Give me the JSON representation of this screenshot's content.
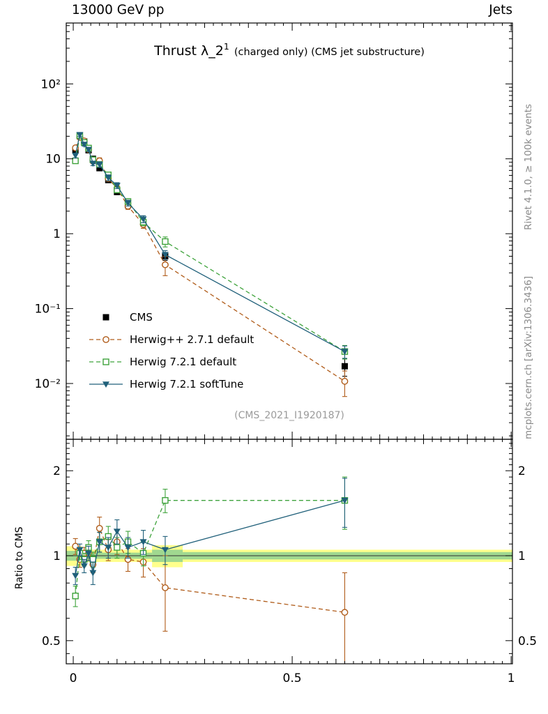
{
  "header": {
    "left": "13000 GeV pp",
    "right": "Jets"
  },
  "title": {
    "main": "Thrust λ_2",
    "sup": "1",
    "rest": "(charged only) (CMS jet substructure)"
  },
  "watermark": "(CMS_2021_I1920187)",
  "side_texts": {
    "top": "Rivet 4.1.0, ≥ 100k events",
    "bottom": "mcplots.cern.ch [arXiv:1306.3436]"
  },
  "ratio_axis_title": "Ratio to CMS",
  "chart_data": {
    "type": "line",
    "title": "Thrust λ_2¹ (charged only) (CMS jet substructure)",
    "xlabel": "",
    "ylabel": "",
    "x": [
      0.005,
      0.015,
      0.025,
      0.035,
      0.045,
      0.06,
      0.08,
      0.1,
      0.125,
      0.16,
      0.21,
      0.62
    ],
    "series": [
      {
        "name": "CMS",
        "color": "#000000",
        "marker": "square-filled",
        "line": "none",
        "values": [
          13,
          20,
          17,
          13,
          10,
          7.5,
          5.2,
          3.6,
          2.4,
          1.4,
          0.5,
          0.017
        ],
        "errors": [
          1.2,
          1.4,
          1.2,
          0.9,
          0.7,
          0.55,
          0.38,
          0.27,
          0.18,
          0.12,
          0.06,
          0.0045
        ]
      },
      {
        "name": "Herwig++ 2.7.1 default",
        "color": "#b05c1a",
        "marker": "circle-open",
        "line": "dashed",
        "values": [
          14.0,
          19.4,
          17.3,
          13.3,
          9.3,
          9.4,
          5.46,
          4.03,
          2.33,
          1.33,
          0.385,
          0.0107
        ],
        "errors": [
          0.9,
          1.1,
          0.9,
          0.8,
          0.6,
          0.9,
          0.45,
          0.38,
          0.22,
          0.15,
          0.11,
          0.004
        ],
        "ratio": [
          1.08,
          0.97,
          1.02,
          1.02,
          0.93,
          1.25,
          1.05,
          1.12,
          0.97,
          0.95,
          0.77,
          0.63
        ],
        "ratio_errors": [
          0.07,
          0.06,
          0.05,
          0.06,
          0.06,
          0.12,
          0.09,
          0.11,
          0.09,
          0.11,
          0.23,
          0.24
        ]
      },
      {
        "name": "Herwig 7.2.1 default",
        "color": "#3fa33c",
        "marker": "square-open",
        "line": "dashed",
        "values": [
          9.4,
          20.4,
          16.5,
          13.9,
          9.7,
          8.4,
          6.1,
          3.85,
          2.69,
          1.43,
          0.785,
          0.0267
        ],
        "errors": [
          0.7,
          1.1,
          0.9,
          0.8,
          0.6,
          0.7,
          0.5,
          0.34,
          0.24,
          0.15,
          0.12,
          0.0055
        ],
        "ratio": [
          0.72,
          1.02,
          0.97,
          1.07,
          0.97,
          1.12,
          1.17,
          1.07,
          1.12,
          1.02,
          1.57,
          1.57
        ],
        "ratio_errors": [
          0.06,
          0.05,
          0.05,
          0.06,
          0.06,
          0.09,
          0.1,
          0.09,
          0.1,
          0.1,
          0.15,
          0.33
        ]
      },
      {
        "name": "Herwig 7.2.1 softTune",
        "color": "#20607a",
        "marker": "triangle-down-filled",
        "line": "solid",
        "values": [
          11.1,
          21.0,
          15.6,
          13.3,
          8.7,
          8.4,
          5.6,
          4.4,
          2.57,
          1.57,
          0.525,
          0.0267
        ],
        "errors": [
          0.8,
          1.2,
          0.85,
          0.8,
          0.6,
          0.7,
          0.5,
          0.4,
          0.23,
          0.17,
          0.07,
          0.005
        ],
        "ratio": [
          0.85,
          1.05,
          0.92,
          1.02,
          0.87,
          1.12,
          1.07,
          1.22,
          1.07,
          1.12,
          1.05,
          1.57
        ],
        "ratio_errors": [
          0.06,
          0.05,
          0.05,
          0.06,
          0.08,
          0.09,
          0.09,
          0.12,
          0.09,
          0.11,
          0.12,
          0.31
        ]
      }
    ],
    "ratio_band": {
      "yellow_color": "#ffff8c",
      "green_color": "#a0d890",
      "segments": [
        {
          "x0": -0.016,
          "x1": 0.02,
          "yellow": 0.08,
          "green": 0.04
        },
        {
          "x0": 0.02,
          "x1": 0.18,
          "yellow": 0.05,
          "green": 0.025
        },
        {
          "x0": 0.18,
          "x1": 0.25,
          "yellow": 0.09,
          "green": 0.05
        },
        {
          "x0": 0.25,
          "x1": 1.003,
          "yellow": 0.05,
          "green": 0.03
        }
      ]
    },
    "axes": {
      "x": {
        "min": -0.016,
        "max": 1.003,
        "ticks": [
          {
            "v": 0,
            "label": "0"
          },
          {
            "v": 0.5,
            "label": "0.5"
          },
          {
            "v": 1,
            "label": "1"
          }
        ]
      },
      "y_main": {
        "scale": "log",
        "min": 0.0018,
        "max": 650,
        "ticks": [
          {
            "v": 100,
            "label": "10²"
          },
          {
            "v": 10,
            "label": "10"
          },
          {
            "v": 1,
            "label": "1"
          },
          {
            "v": 0.1,
            "label": "10⁻¹"
          },
          {
            "v": 0.01,
            "label": "10⁻²"
          }
        ]
      },
      "y_ratio": {
        "scale": "log",
        "min": 0.414,
        "max": 2.585,
        "ticks": [
          {
            "v": 2,
            "label": "2"
          },
          {
            "v": 1,
            "label": "1"
          },
          {
            "v": 0.5,
            "label": "0.5"
          }
        ],
        "minor": [
          0.45,
          0.6,
          0.7,
          0.8,
          0.9,
          1.1,
          1.2,
          1.3,
          1.4,
          1.5,
          1.6,
          1.7,
          1.8,
          1.9,
          2.1,
          2.2,
          2.3,
          2.4,
          2.5
        ]
      }
    },
    "legend_position": "inside-left-lower-main-panel"
  }
}
